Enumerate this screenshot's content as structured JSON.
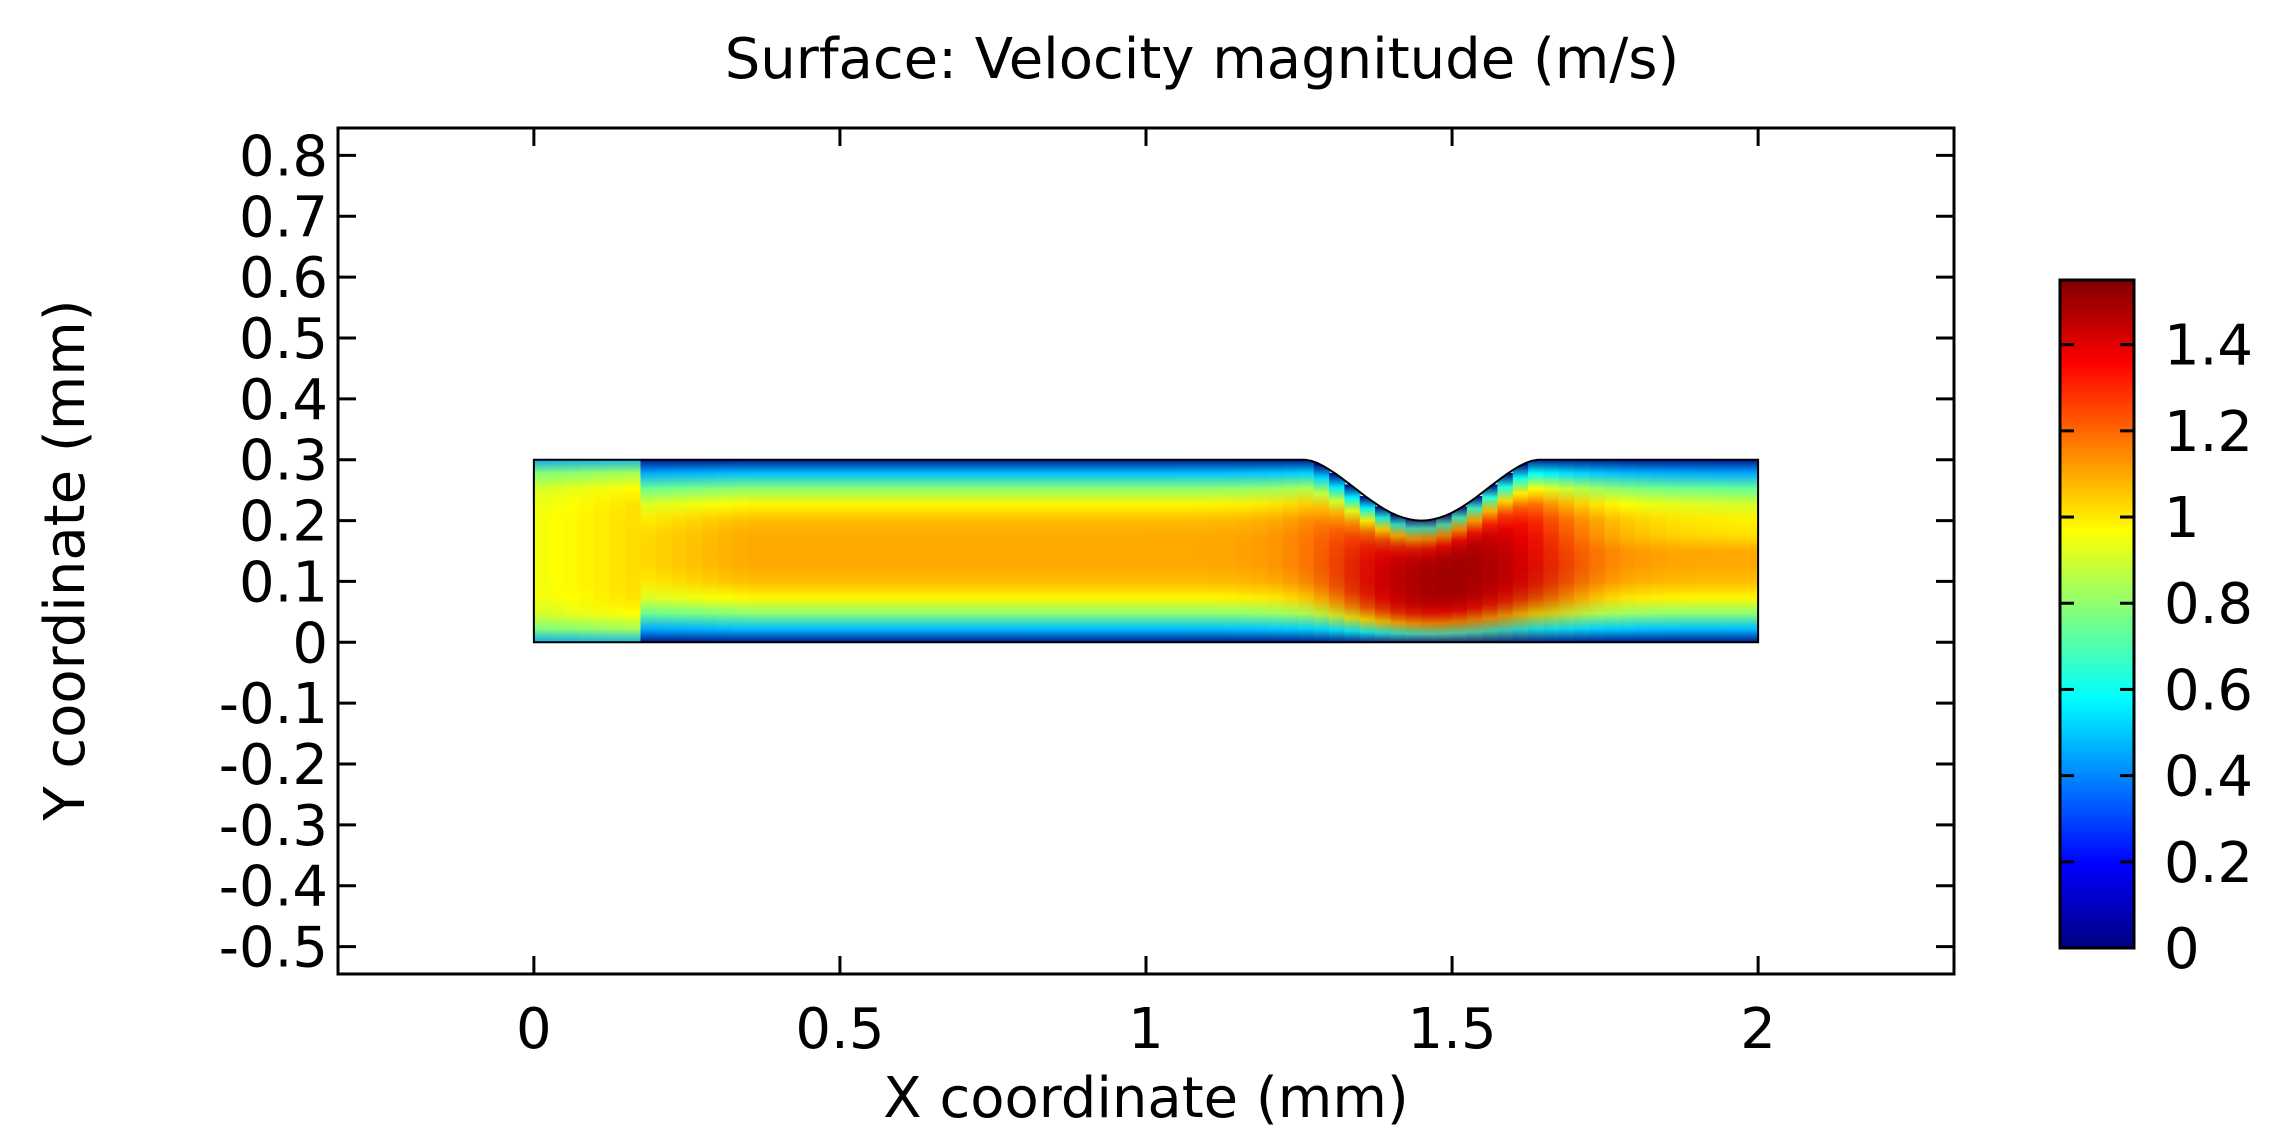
{
  "chart_data": {
    "type": "heatmap",
    "title": "Surface: Velocity magnitude (m/s)",
    "xlabel": "X coordinate (mm)",
    "ylabel": "Y coordinate (mm)",
    "xlim": [
      -0.32,
      2.32
    ],
    "ylim": [
      -0.545,
      0.845
    ],
    "x_ticks": [
      0,
      0.5,
      1,
      1.5,
      2
    ],
    "x_tick_labels": [
      "0",
      "0.5",
      "1",
      "1.5",
      "2"
    ],
    "y_ticks": [
      0.8,
      0.7,
      0.6,
      0.5,
      0.4,
      0.3,
      0.2,
      0.1,
      0,
      -0.1,
      -0.2,
      -0.3,
      -0.4,
      -0.5
    ],
    "y_tick_labels": [
      "0.8",
      "0.7",
      "0.6",
      "0.5",
      "0.4",
      "0.3",
      "0.2",
      "0.1",
      "0",
      "-0.1",
      "-0.2",
      "-0.3",
      "-0.4",
      "-0.5"
    ],
    "colorbar": {
      "range": [
        0,
        1.55
      ],
      "ticks": [
        1.4,
        1.2,
        1,
        0.8,
        0.6,
        0.4,
        0.2,
        0
      ],
      "tick_labels": [
        "1.4",
        "1.2",
        "1",
        "0.8",
        "0.6",
        "0.4",
        "0.2",
        "0"
      ],
      "colormap": "jet",
      "colors": [
        "#00007f",
        "#0000ff",
        "#007fff",
        "#00ffff",
        "#7fff7f",
        "#ffff00",
        "#ff7f00",
        "#ff0000",
        "#7f0000"
      ]
    },
    "domain": {
      "x_range": [
        0,
        2
      ],
      "y_range": [
        0,
        0.3
      ],
      "constriction": {
        "center_x": 1.45,
        "min_y": 0.2,
        "start_x": 1.26,
        "end_x": 1.64
      }
    },
    "field_description": {
      "inlet_velocity": 0.95,
      "core_velocity": 1.1,
      "peak_velocity": 1.5,
      "peak_location": [
        1.5,
        0.1
      ]
    }
  }
}
